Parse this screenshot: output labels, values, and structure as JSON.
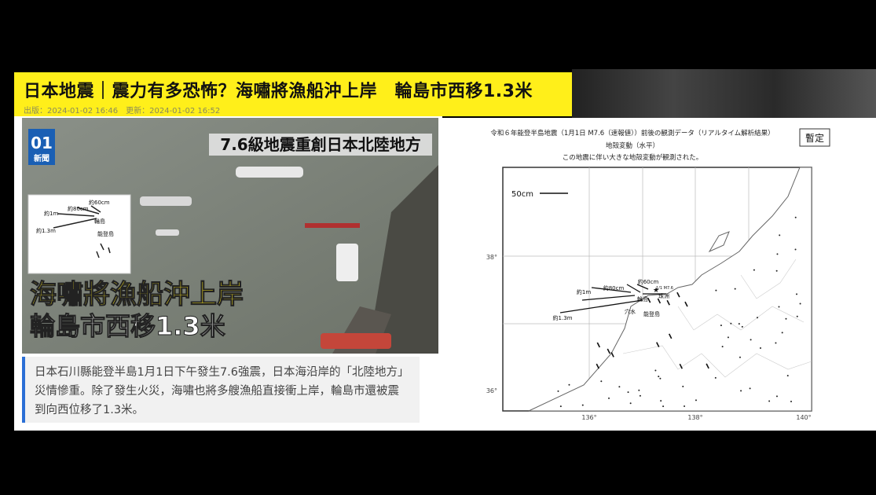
{
  "header": {
    "title": "日本地震｜震力有多恐怖？海嘯將漁船沖上岸　輪島市西移1.3米",
    "published": "出版：2024-01-02 16:46",
    "updated": "更新：2024-01-02 16:52"
  },
  "photo": {
    "logo": "01",
    "logo_sub": "新聞",
    "banner": "7.6級地震重創日本北陸地方",
    "headline_1": "海嘯將漁船沖上岸",
    "headline_2": "輪島市西移1.3米",
    "inset_labels": [
      "約60cm",
      "約80cm",
      "約1m",
      "約1.3m",
      "輪島",
      "能登島"
    ]
  },
  "caption": "日本石川縣能登半島1月1日下午發生7.6強震，日本海沿岸的「北陸地方」災情慘重。除了發生火災，海嘯也將多艘漁船直接衝上岸，輪島市還被震到向西位移了1.3米。",
  "map": {
    "title": "令和６年能登半島地震（1月1日 M7.6（速報値））前後の観測データ（リアルタイム解析結果）",
    "subtitle": "地殻変動（水平）",
    "note": "この地震に伴い大きな地殻変動が観測された。",
    "badge": "暫定",
    "scale": "50cm",
    "lat_labels": [
      "38°",
      "36°"
    ],
    "lon_labels": [
      "136°",
      "138°",
      "140°"
    ],
    "labels": [
      "約60cm",
      "約80cm",
      "約1m",
      "約1.3m",
      "1/1 M7.6",
      "輪島",
      "珠洲",
      "穴水",
      "能登島"
    ]
  }
}
